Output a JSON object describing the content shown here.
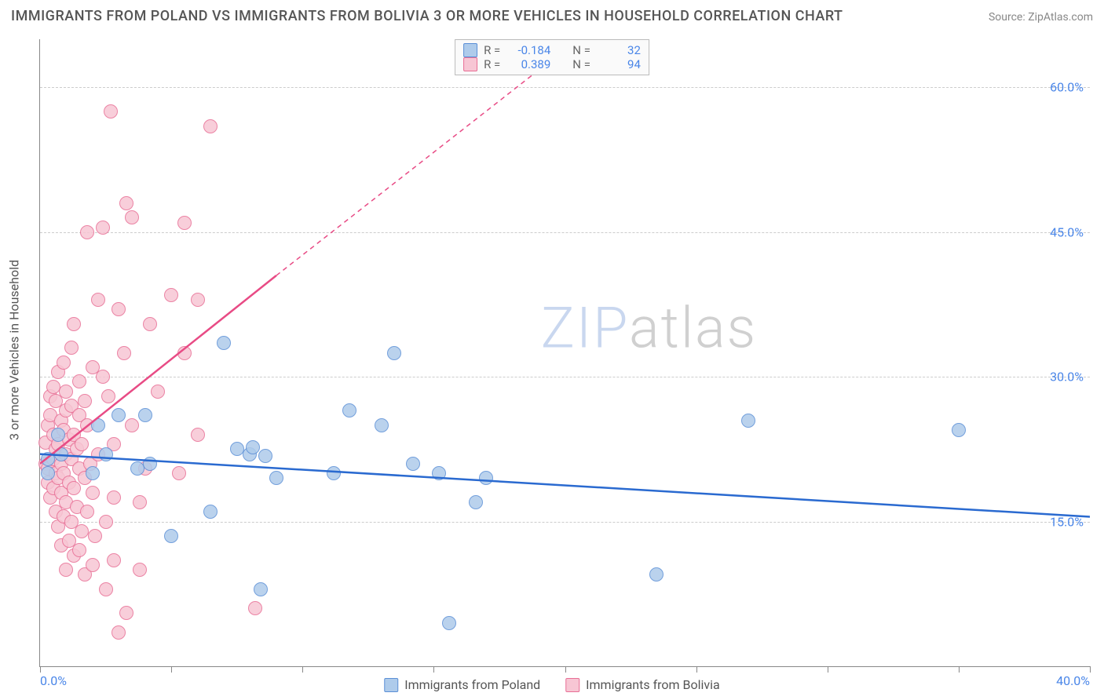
{
  "title": "IMMIGRANTS FROM POLAND VS IMMIGRANTS FROM BOLIVIA 3 OR MORE VEHICLES IN HOUSEHOLD CORRELATION CHART",
  "source_prefix": "Source: ",
  "source_name": "ZipAtlas.com",
  "ylabel": "3 or more Vehicles in Household",
  "watermark_zip": "ZIP",
  "watermark_atlas": "atlas",
  "watermark_colors": {
    "zip": "#c9d7ef",
    "atlas": "#d0d0d0"
  },
  "axes": {
    "xlim": [
      0,
      40
    ],
    "ylim": [
      0,
      65
    ],
    "x_tick_label_left": "0.0%",
    "x_tick_label_right": "40.0%",
    "x_minor_ticks": [
      0,
      5,
      10,
      15,
      20,
      25,
      30,
      35,
      40
    ],
    "y_ticks": [
      {
        "v": 15,
        "label": "15.0%"
      },
      {
        "v": 30,
        "label": "30.0%"
      },
      {
        "v": 45,
        "label": "45.0%"
      },
      {
        "v": 60,
        "label": "60.0%"
      }
    ],
    "grid_color": "#cccccc"
  },
  "series": {
    "poland": {
      "label": "Immigrants from Poland",
      "fill": "#aecbeb",
      "stroke": "#5b8fd6",
      "line_color": "#2a6ad0",
      "line_width": 2.5,
      "R": "-0.184",
      "N": "32",
      "regression": {
        "x1": 0,
        "y1": 22.0,
        "x2": 40,
        "y2": 15.5
      },
      "points": [
        [
          0.3,
          21.5
        ],
        [
          0.3,
          20.0
        ],
        [
          0.7,
          24.0
        ],
        [
          0.8,
          22.0
        ],
        [
          2.0,
          20.0
        ],
        [
          2.2,
          25.0
        ],
        [
          2.5,
          22.0
        ],
        [
          3.0,
          26.0
        ],
        [
          3.7,
          20.5
        ],
        [
          4.0,
          26.0
        ],
        [
          4.2,
          21.0
        ],
        [
          5.0,
          13.5
        ],
        [
          6.5,
          16.0
        ],
        [
          7.0,
          33.5
        ],
        [
          7.5,
          22.5
        ],
        [
          8.0,
          22.0
        ],
        [
          8.1,
          22.7
        ],
        [
          8.6,
          21.8
        ],
        [
          8.4,
          8.0
        ],
        [
          9.0,
          19.5
        ],
        [
          11.2,
          20.0
        ],
        [
          11.8,
          26.5
        ],
        [
          13.0,
          25.0
        ],
        [
          13.5,
          32.5
        ],
        [
          14.2,
          21.0
        ],
        [
          15.2,
          20.0
        ],
        [
          15.6,
          4.5
        ],
        [
          16.6,
          17.0
        ],
        [
          17.0,
          19.5
        ],
        [
          23.5,
          9.5
        ],
        [
          27.0,
          25.5
        ],
        [
          35.0,
          24.5
        ]
      ]
    },
    "bolivia": {
      "label": "Immigrants from Bolivia",
      "fill": "#f7c6d4",
      "stroke": "#e86e95",
      "line_color": "#e84b85",
      "line_width": 2.5,
      "R": "0.389",
      "N": "94",
      "regression_solid": {
        "x1": 0,
        "y1": 21.0,
        "x2": 9.0,
        "y2": 40.5
      },
      "regression_dash": {
        "x1": 9.0,
        "y1": 40.5,
        "x2": 20.5,
        "y2": 65.0
      },
      "points": [
        [
          0.2,
          21.0
        ],
        [
          0.2,
          23.2
        ],
        [
          0.3,
          19.0
        ],
        [
          0.3,
          20.5
        ],
        [
          0.3,
          25.0
        ],
        [
          0.4,
          17.5
        ],
        [
          0.4,
          26.0
        ],
        [
          0.4,
          28.0
        ],
        [
          0.5,
          18.5
        ],
        [
          0.5,
          21.5
        ],
        [
          0.5,
          24.0
        ],
        [
          0.5,
          29.0
        ],
        [
          0.6,
          16.0
        ],
        [
          0.6,
          20.0
        ],
        [
          0.6,
          22.5
        ],
        [
          0.6,
          27.5
        ],
        [
          0.7,
          14.5
        ],
        [
          0.7,
          19.5
        ],
        [
          0.7,
          23.0
        ],
        [
          0.7,
          30.5
        ],
        [
          0.8,
          12.5
        ],
        [
          0.8,
          18.0
        ],
        [
          0.8,
          21.0
        ],
        [
          0.8,
          25.5
        ],
        [
          0.9,
          15.5
        ],
        [
          0.9,
          20.0
        ],
        [
          0.9,
          24.5
        ],
        [
          0.9,
          31.5
        ],
        [
          1.0,
          10.0
        ],
        [
          1.0,
          17.0
        ],
        [
          1.0,
          22.0
        ],
        [
          1.0,
          26.5
        ],
        [
          1.0,
          28.5
        ],
        [
          1.1,
          13.0
        ],
        [
          1.1,
          19.0
        ],
        [
          1.1,
          23.5
        ],
        [
          1.2,
          15.0
        ],
        [
          1.2,
          21.5
        ],
        [
          1.2,
          27.0
        ],
        [
          1.2,
          33.0
        ],
        [
          1.3,
          11.5
        ],
        [
          1.3,
          18.5
        ],
        [
          1.3,
          24.0
        ],
        [
          1.3,
          35.5
        ],
        [
          1.4,
          16.5
        ],
        [
          1.4,
          22.5
        ],
        [
          1.5,
          12.0
        ],
        [
          1.5,
          20.5
        ],
        [
          1.5,
          26.0
        ],
        [
          1.5,
          29.5
        ],
        [
          1.6,
          14.0
        ],
        [
          1.6,
          23.0
        ],
        [
          1.7,
          9.5
        ],
        [
          1.7,
          19.5
        ],
        [
          1.7,
          27.5
        ],
        [
          1.8,
          16.0
        ],
        [
          1.8,
          25.0
        ],
        [
          1.8,
          45.0
        ],
        [
          1.9,
          21.0
        ],
        [
          2.0,
          10.5
        ],
        [
          2.0,
          18.0
        ],
        [
          2.0,
          31.0
        ],
        [
          2.1,
          13.5
        ],
        [
          2.2,
          22.0
        ],
        [
          2.2,
          38.0
        ],
        [
          2.4,
          30.0
        ],
        [
          2.4,
          45.5
        ],
        [
          2.5,
          8.0
        ],
        [
          2.5,
          15.0
        ],
        [
          2.6,
          28.0
        ],
        [
          2.7,
          57.5
        ],
        [
          2.8,
          11.0
        ],
        [
          2.8,
          17.5
        ],
        [
          2.8,
          23.0
        ],
        [
          3.0,
          3.5
        ],
        [
          3.0,
          37.0
        ],
        [
          3.2,
          32.5
        ],
        [
          3.3,
          5.5
        ],
        [
          3.3,
          48.0
        ],
        [
          3.5,
          25.0
        ],
        [
          3.5,
          46.5
        ],
        [
          3.8,
          10.0
        ],
        [
          3.8,
          17.0
        ],
        [
          4.0,
          20.5
        ],
        [
          4.2,
          35.5
        ],
        [
          4.5,
          28.5
        ],
        [
          5.0,
          38.5
        ],
        [
          5.3,
          20.0
        ],
        [
          5.5,
          32.5
        ],
        [
          5.5,
          46.0
        ],
        [
          6.0,
          24.0
        ],
        [
          6.0,
          38.0
        ],
        [
          6.5,
          56.0
        ],
        [
          8.2,
          6.0
        ]
      ]
    }
  },
  "legend_top_labels": {
    "R": "R =",
    "N": "N ="
  },
  "background_color": "#ffffff"
}
